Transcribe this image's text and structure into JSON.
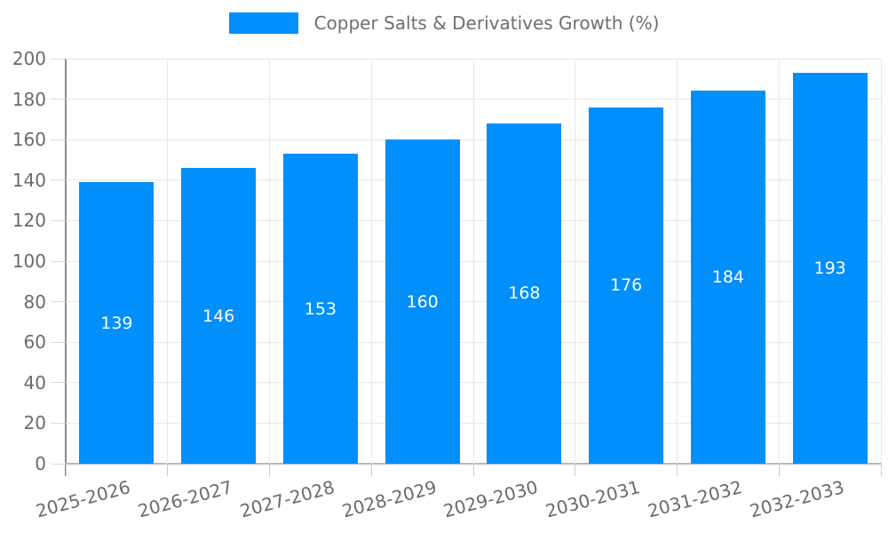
{
  "chart_data": {
    "type": "bar",
    "title": "Copper Salts & Derivatives Growth (%)",
    "categories": [
      "2025-2026",
      "2026-2027",
      "2027-2028",
      "2028-2029",
      "2029-2030",
      "2030-2031",
      "2031-2032",
      "2032-2033"
    ],
    "values": [
      139,
      146,
      153,
      160,
      168,
      176,
      184,
      193
    ],
    "xlabel": "",
    "ylabel": "",
    "ylim": [
      0,
      200
    ],
    "ytick_step": 20,
    "yticks": [
      0,
      20,
      40,
      60,
      80,
      100,
      120,
      140,
      160,
      180,
      200
    ],
    "grid": true,
    "legend_position": "top",
    "xtick_rotation_deg": -15,
    "colors": {
      "bar": "#008FFB",
      "bar_label": "#FFFFFF",
      "axis_text": "#6B6B6B",
      "legend_text": "#6E6E6E",
      "gridline": "#E8E8E8",
      "y_axis_line": "#8A8A8A",
      "x_axis_line": "#B7B7B7",
      "y_tick": "#DCDCDC",
      "x_tick": "#CCCCCC",
      "background": "#FFFFFF"
    }
  }
}
